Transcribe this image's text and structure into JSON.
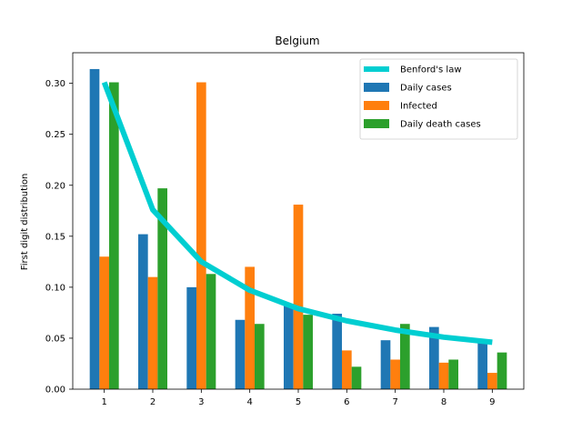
{
  "chart_data": {
    "type": "bar",
    "title": "Belgium",
    "xlabel": "",
    "ylabel": "First digit distribution",
    "categories": [
      "1",
      "2",
      "3",
      "4",
      "5",
      "6",
      "7",
      "8",
      "9"
    ],
    "x": [
      1,
      2,
      3,
      4,
      5,
      6,
      7,
      8,
      9
    ],
    "ylim": [
      0,
      0.33
    ],
    "xlim": [
      0.35,
      9.65
    ],
    "yticks": [
      0.0,
      0.05,
      0.1,
      0.15,
      0.2,
      0.25,
      0.3
    ],
    "ytick_labels": [
      "0.00",
      "0.05",
      "0.10",
      "0.15",
      "0.20",
      "0.25",
      "0.30"
    ],
    "grid": false,
    "legend_position": "top-right",
    "series": [
      {
        "name": "Daily cases",
        "kind": "bar",
        "color": "#1f77b4",
        "values": [
          0.314,
          0.152,
          0.1,
          0.068,
          0.082,
          0.074,
          0.048,
          0.061,
          0.048
        ]
      },
      {
        "name": "Infected",
        "kind": "bar",
        "color": "#ff7f0e",
        "values": [
          0.13,
          0.11,
          0.301,
          0.12,
          0.181,
          0.038,
          0.029,
          0.026,
          0.016
        ]
      },
      {
        "name": "Daily death cases",
        "kind": "bar",
        "color": "#2ca02c",
        "values": [
          0.301,
          0.197,
          0.113,
          0.064,
          0.073,
          0.022,
          0.064,
          0.029,
          0.036
        ]
      }
    ],
    "reference_line": {
      "name": "Benford's law",
      "kind": "line",
      "color": "#00ced1",
      "values": [
        0.301,
        0.176,
        0.125,
        0.097,
        0.079,
        0.067,
        0.058,
        0.051,
        0.046
      ]
    },
    "legend_order": [
      "Benford's law",
      "Daily cases",
      "Infected",
      "Daily death cases"
    ]
  }
}
